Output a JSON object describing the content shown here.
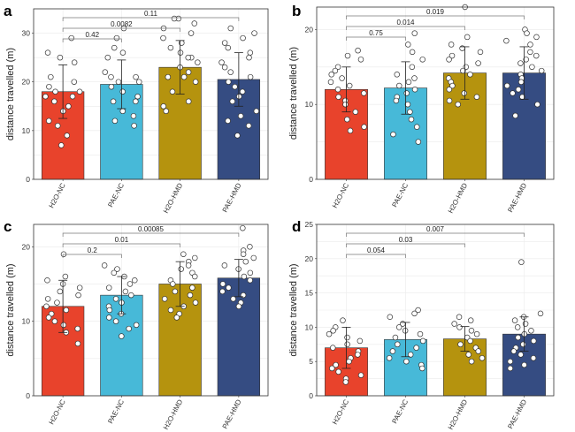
{
  "categories": [
    "H2O-NC",
    "PAE-NC",
    "H2O-HMD",
    "PAE-HMD"
  ],
  "colors": {
    "H2O-NC": "#e8432c",
    "PAE-NC": "#47b9d8",
    "H2O-HMD": "#b5930e",
    "PAE-HMD": "#354c82"
  },
  "chart_data": [
    {
      "panel": "a",
      "type": "bar",
      "ylabel": "distance travelled (m)",
      "ylim": [
        0,
        35
      ],
      "yticks": [
        0,
        10,
        20,
        30
      ],
      "grid": true,
      "categories": [
        "H2O-NC",
        "PAE-NC",
        "H2O-HMD",
        "PAE-HMD"
      ],
      "values": [
        18,
        19.5,
        23,
        20.5
      ],
      "error": [
        5.5,
        5,
        5.5,
        5.5
      ],
      "points": [
        [
          29,
          26,
          25,
          24,
          21,
          20,
          19,
          18,
          18,
          17,
          17,
          16,
          15,
          14,
          12,
          11,
          9,
          7
        ],
        [
          31,
          29,
          27,
          26,
          25,
          22,
          21,
          21,
          20,
          20,
          19,
          18,
          17,
          16,
          16,
          14,
          13,
          12,
          11
        ],
        [
          33,
          33,
          32,
          31,
          30,
          29,
          28,
          27,
          26,
          25,
          25,
          24,
          23,
          22,
          21,
          21,
          20,
          18,
          16,
          15,
          14
        ],
        [
          31,
          30,
          29,
          28,
          27,
          26,
          25,
          24,
          23,
          22,
          21,
          20,
          19,
          18,
          17,
          16,
          14,
          13,
          12,
          11,
          9
        ]
      ],
      "comparisons": [
        {
          "pair": [
            0,
            1
          ],
          "label": "0.42"
        },
        {
          "pair": [
            0,
            2
          ],
          "label": "0.0082"
        },
        {
          "pair": [
            0,
            3
          ],
          "label": "0.11"
        }
      ]
    },
    {
      "panel": "b",
      "type": "bar",
      "ylabel": "distance travelled (m)",
      "ylim": [
        0,
        23
      ],
      "yticks": [
        0,
        10,
        20
      ],
      "grid": true,
      "categories": [
        "H2O-NC",
        "PAE-NC",
        "H2O-HMD",
        "PAE-HMD"
      ],
      "values": [
        12,
        12.2,
        14.2,
        14.2
      ],
      "error": [
        3,
        3.5,
        3.5,
        3.5
      ],
      "points": [
        [
          17.2,
          16.5,
          16,
          15,
          14.5,
          14,
          13.5,
          13,
          12.5,
          12,
          11.5,
          11,
          10.5,
          10,
          9,
          8,
          7,
          6.5
        ],
        [
          19.5,
          18,
          17,
          16,
          15,
          14,
          13.5,
          13,
          12.5,
          12,
          11.5,
          11,
          10.5,
          10,
          9,
          8,
          7,
          6,
          5
        ],
        [
          23,
          19,
          18,
          17.5,
          17,
          16.5,
          16,
          15.5,
          15,
          14.5,
          14,
          13.5,
          13,
          12.5,
          12,
          11.5,
          11,
          10.5,
          10
        ],
        [
          20,
          19.5,
          19,
          18.5,
          18,
          17,
          16.5,
          16,
          15.5,
          15,
          14.5,
          14,
          13.5,
          13,
          12.5,
          12,
          11.5,
          11,
          10,
          8.5
        ]
      ],
      "comparisons": [
        {
          "pair": [
            0,
            1
          ],
          "label": "0.75"
        },
        {
          "pair": [
            0,
            2
          ],
          "label": "0.014"
        },
        {
          "pair": [
            0,
            3
          ],
          "label": "0.019"
        }
      ]
    },
    {
      "panel": "c",
      "type": "bar",
      "ylabel": "distance travelled (m)",
      "ylim": [
        0,
        23
      ],
      "yticks": [
        0,
        10,
        20
      ],
      "grid": true,
      "categories": [
        "H2O-NC",
        "PAE-NC",
        "H2O-HMD",
        "PAE-HMD"
      ],
      "values": [
        12,
        13.5,
        15,
        15.8
      ],
      "error": [
        3.5,
        2.5,
        3,
        2.5
      ],
      "points": [
        [
          19,
          16,
          15.5,
          15,
          14.5,
          14,
          13.5,
          13,
          12.5,
          12,
          11.5,
          11,
          10.5,
          10,
          9.5,
          9,
          8.5,
          7
        ],
        [
          17.5,
          17,
          16.5,
          16,
          15.5,
          15,
          14.5,
          14,
          13.5,
          13,
          12.5,
          12,
          11.5,
          11,
          10.5,
          10,
          9.5,
          9,
          8
        ],
        [
          19,
          18.5,
          18,
          17.5,
          17,
          16.5,
          16,
          15.5,
          15,
          14.5,
          14,
          13.5,
          13,
          12.5,
          12,
          11.5,
          11,
          10.5
        ],
        [
          22.5,
          20,
          19.5,
          19,
          18.5,
          18,
          17.5,
          17,
          16.5,
          16,
          15.5,
          15,
          14.5,
          14,
          13.5,
          13,
          12.5,
          12
        ]
      ],
      "comparisons": [
        {
          "pair": [
            0,
            1
          ],
          "label": "0.2"
        },
        {
          "pair": [
            0,
            2
          ],
          "label": "0.01"
        },
        {
          "pair": [
            0,
            3
          ],
          "label": "0.00085"
        }
      ]
    },
    {
      "panel": "d",
      "type": "bar",
      "ylabel": "distance travelled (m)",
      "ylim": [
        0,
        25
      ],
      "yticks": [
        0,
        5,
        10,
        15,
        20,
        25
      ],
      "grid": true,
      "categories": [
        "H2O-NC",
        "PAE-NC",
        "H2O-HMD",
        "PAE-HMD"
      ],
      "values": [
        7,
        8.2,
        8.3,
        9
      ],
      "error": [
        3,
        2.5,
        1.8,
        2.5
      ],
      "points": [
        [
          11,
          10,
          9.5,
          9,
          8.5,
          8,
          7.5,
          7,
          6.5,
          6,
          5.5,
          5,
          4.5,
          4,
          3.5,
          3,
          2.5,
          2
        ],
        [
          12.5,
          12,
          11.5,
          10.5,
          10,
          9.5,
          9,
          8.5,
          8,
          7.5,
          7,
          6.5,
          6,
          5.5,
          5,
          4.5,
          4
        ],
        [
          11.5,
          11,
          10.5,
          10,
          9.5,
          9,
          8.5,
          8,
          7.5,
          7,
          6.5,
          6,
          5.5,
          5
        ],
        [
          19.5,
          12,
          11.5,
          11,
          10.5,
          10,
          9.5,
          9,
          8.5,
          8,
          7.5,
          7,
          6.5,
          6,
          5.5,
          5,
          4.5,
          4
        ]
      ],
      "comparisons": [
        {
          "pair": [
            0,
            1
          ],
          "label": "0.054"
        },
        {
          "pair": [
            0,
            2
          ],
          "label": "0.03"
        },
        {
          "pair": [
            0,
            3
          ],
          "label": "0.007"
        }
      ]
    }
  ]
}
